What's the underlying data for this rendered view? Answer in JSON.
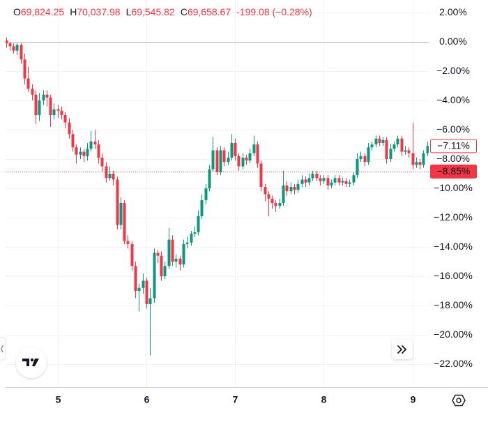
{
  "chart_data": {
    "type": "candlestick",
    "ohlc_legend": [
      {
        "key": "O",
        "value": "69,824.25"
      },
      {
        "key": "H",
        "value": "70,037.98"
      },
      {
        "key": "L",
        "value": "69,545.82"
      },
      {
        "key": "C",
        "value": "69,658.67"
      }
    ],
    "change": "-199.08 (−0.28%)",
    "up_color": "#089981",
    "down_color": "#f23645",
    "grid": true,
    "ylim": [
      -23.57,
      2.86
    ],
    "yticks": [
      {
        "value": 2,
        "label": "2.00%"
      },
      {
        "value": 0,
        "label": "0.00%"
      },
      {
        "value": -2,
        "label": "−2.00%"
      },
      {
        "value": -4,
        "label": "−4.00%"
      },
      {
        "value": -6,
        "label": "−6.00%"
      },
      {
        "value": -8,
        "label": "−8.00%"
      },
      {
        "value": -10,
        "label": "−10.00%"
      },
      {
        "value": -12,
        "label": "−12.00%"
      },
      {
        "value": -14,
        "label": "−14.00%"
      },
      {
        "value": -16,
        "label": "−16.00%"
      },
      {
        "value": -18,
        "label": "−18.00%"
      },
      {
        "value": -20,
        "label": "−20.00%"
      },
      {
        "value": -22,
        "label": "−22.00%"
      }
    ],
    "baseline": 0,
    "price_labels": [
      {
        "value": -7.11,
        "label": "−7.11%",
        "style": "outline"
      },
      {
        "value": -8.85,
        "label": "−8.85%",
        "style": "filled"
      }
    ],
    "categories": [
      null,
      null,
      null,
      null,
      null,
      null,
      null,
      null,
      null,
      null,
      null,
      null,
      null,
      null,
      "5",
      null,
      null,
      null,
      null,
      null,
      null,
      null,
      null,
      null,
      null,
      null,
      null,
      null,
      null,
      null,
      null,
      null,
      null,
      null,
      null,
      null,
      null,
      null,
      "6",
      null,
      null,
      null,
      null,
      null,
      null,
      null,
      null,
      null,
      null,
      null,
      null,
      null,
      null,
      null,
      null,
      null,
      null,
      null,
      null,
      null,
      null,
      null,
      "7",
      null,
      null,
      null,
      null,
      null,
      null,
      null,
      null,
      null,
      null,
      null,
      null,
      null,
      null,
      null,
      null,
      null,
      null,
      null,
      null,
      null,
      null,
      null,
      "8",
      null,
      null,
      null,
      null,
      null,
      null,
      null,
      null,
      null,
      null,
      null,
      null,
      null,
      null,
      null,
      null,
      null,
      null,
      null,
      null,
      null,
      null,
      null,
      "9",
      null,
      null,
      null,
      null
    ],
    "candles": [
      [
        0.1,
        0.3,
        -0.4,
        -0.1
      ],
      [
        -0.1,
        0.0,
        -0.6,
        -0.3
      ],
      [
        -0.3,
        -0.1,
        -0.8,
        -0.6
      ],
      [
        -0.6,
        -0.1,
        -0.9,
        -0.2
      ],
      [
        -0.2,
        -0.1,
        -1.5,
        -1.2
      ],
      [
        -1.2,
        -0.8,
        -2.9,
        -2.5
      ],
      [
        -2.5,
        -1.7,
        -3.4,
        -3.2
      ],
      [
        -3.2,
        -2.9,
        -4.0,
        -3.6
      ],
      [
        -3.6,
        -3.3,
        -5.6,
        -5.0
      ],
      [
        -5.0,
        -3.5,
        -5.4,
        -4.0
      ],
      [
        -4.0,
        -3.3,
        -4.3,
        -3.6
      ],
      [
        -3.6,
        -3.3,
        -4.4,
        -3.8
      ],
      [
        -3.8,
        -3.6,
        -5.8,
        -5.0
      ],
      [
        -5.0,
        -4.2,
        -5.3,
        -4.6
      ],
      [
        -4.6,
        -4.3,
        -5.2,
        -4.7
      ],
      [
        -4.7,
        -4.4,
        -5.3,
        -5.0
      ],
      [
        -5.0,
        -4.8,
        -5.9,
        -5.5
      ],
      [
        -5.5,
        -5.2,
        -6.6,
        -6.3
      ],
      [
        -6.3,
        -6.0,
        -7.5,
        -7.2
      ],
      [
        -7.2,
        -7.0,
        -8.3,
        -7.7
      ],
      [
        -7.7,
        -7.2,
        -8.0,
        -7.5
      ],
      [
        -7.5,
        -7.3,
        -8.2,
        -7.8
      ],
      [
        -7.8,
        -6.9,
        -8.1,
        -7.3
      ],
      [
        -7.3,
        -6.1,
        -7.5,
        -6.8
      ],
      [
        -6.8,
        -6.0,
        -7.3,
        -7.0
      ],
      [
        -7.0,
        -6.7,
        -8.3,
        -7.9
      ],
      [
        -7.9,
        -7.6,
        -8.9,
        -8.5
      ],
      [
        -8.5,
        -8.2,
        -9.6,
        -9.3
      ],
      [
        -9.3,
        -8.5,
        -9.5,
        -9.0
      ],
      [
        -9.0,
        -8.8,
        -9.8,
        -9.4
      ],
      [
        -9.4,
        -9.2,
        -12.8,
        -12.5
      ],
      [
        -12.5,
        -10.6,
        -12.8,
        -11.0
      ],
      [
        -11.0,
        -10.8,
        -13.8,
        -13.6
      ],
      [
        -13.6,
        -13.2,
        -14.1,
        -13.8
      ],
      [
        -13.8,
        -13.6,
        -15.6,
        -15.3
      ],
      [
        -15.3,
        -15.0,
        -17.5,
        -17.0
      ],
      [
        -17.0,
        -16.5,
        -18.4,
        -16.8
      ],
      [
        -16.8,
        -15.8,
        -17.2,
        -16.3
      ],
      [
        -16.3,
        -16.1,
        -18.2,
        -17.9
      ],
      [
        -17.9,
        -16.8,
        -21.4,
        -17.5
      ],
      [
        -17.5,
        -14.1,
        -17.8,
        -14.4
      ],
      [
        -14.4,
        -14.2,
        -15.1,
        -14.6
      ],
      [
        -14.6,
        -14.3,
        -16.3,
        -16.0
      ],
      [
        -16.0,
        -15.0,
        -16.2,
        -15.3
      ],
      [
        -15.3,
        -12.7,
        -15.5,
        -13.5
      ],
      [
        -13.5,
        -13.2,
        -15.3,
        -15.0
      ],
      [
        -15.0,
        -14.5,
        -15.4,
        -14.8
      ],
      [
        -14.8,
        -14.6,
        -15.6,
        -15.2
      ],
      [
        -15.2,
        -13.5,
        -15.4,
        -13.8
      ],
      [
        -13.8,
        -13.3,
        -14.1,
        -13.7
      ],
      [
        -13.7,
        -12.9,
        -13.9,
        -13.1
      ],
      [
        -13.1,
        -12.6,
        -13.3,
        -13.0
      ],
      [
        -13.0,
        -11.5,
        -13.2,
        -11.9
      ],
      [
        -11.9,
        -10.4,
        -12.1,
        -10.8
      ],
      [
        -10.8,
        -9.7,
        -11.1,
        -10.0
      ],
      [
        -10.0,
        -8.4,
        -10.2,
        -8.7
      ],
      [
        -8.7,
        -6.5,
        -8.9,
        -7.4
      ],
      [
        -7.4,
        -7.2,
        -9.1,
        -8.9
      ],
      [
        -8.9,
        -7.1,
        -9.1,
        -7.4
      ],
      [
        -7.4,
        -7.2,
        -8.5,
        -8.2
      ],
      [
        -8.2,
        -7.5,
        -8.4,
        -7.9
      ],
      [
        -7.9,
        -6.3,
        -8.1,
        -6.9
      ],
      [
        -6.9,
        -6.6,
        -8.1,
        -7.8
      ],
      [
        -7.8,
        -7.6,
        -8.8,
        -8.5
      ],
      [
        -8.5,
        -7.6,
        -8.7,
        -7.9
      ],
      [
        -7.9,
        -7.7,
        -8.4,
        -8.1
      ],
      [
        -8.1,
        -7.3,
        -8.3,
        -7.6
      ],
      [
        -7.6,
        -6.4,
        -7.8,
        -7.0
      ],
      [
        -7.0,
        -6.8,
        -8.6,
        -8.3
      ],
      [
        -8.3,
        -8.1,
        -10.2,
        -9.9
      ],
      [
        -9.9,
        -9.7,
        -10.9,
        -10.4
      ],
      [
        -10.4,
        -10.2,
        -11.9,
        -10.7
      ],
      [
        -10.7,
        -10.5,
        -11.4,
        -11.0
      ],
      [
        -11.0,
        -10.8,
        -11.6,
        -11.2
      ],
      [
        -11.2,
        -10.7,
        -11.4,
        -11.0
      ],
      [
        -11.0,
        -8.8,
        -11.2,
        -9.8
      ],
      [
        -9.8,
        -9.5,
        -10.5,
        -10.2
      ],
      [
        -10.2,
        -9.6,
        -10.4,
        -9.9
      ],
      [
        -9.9,
        -9.7,
        -10.4,
        -10.1
      ],
      [
        -10.1,
        -9.4,
        -10.3,
        -9.7
      ],
      [
        -9.7,
        -9.1,
        -9.9,
        -9.4
      ],
      [
        -9.4,
        -9.2,
        -9.9,
        -9.6
      ],
      [
        -9.6,
        -9.0,
        -9.8,
        -9.3
      ],
      [
        -9.3,
        -8.8,
        -9.5,
        -9.0
      ],
      [
        -9.0,
        -8.8,
        -9.5,
        -9.3
      ],
      [
        -9.3,
        -9.1,
        -9.8,
        -9.5
      ],
      [
        -9.5,
        -9.1,
        -9.7,
        -9.3
      ],
      [
        -9.3,
        -9.1,
        -10.1,
        -9.8
      ],
      [
        -9.8,
        -9.4,
        -10.0,
        -9.6
      ],
      [
        -9.6,
        -9.1,
        -9.8,
        -9.3
      ],
      [
        -9.3,
        -9.1,
        -9.8,
        -9.6
      ],
      [
        -9.6,
        -9.3,
        -9.8,
        -9.5
      ],
      [
        -9.5,
        -9.3,
        -9.9,
        -9.7
      ],
      [
        -9.7,
        -9.4,
        -9.9,
        -9.6
      ],
      [
        -9.6,
        -8.9,
        -9.8,
        -9.1
      ],
      [
        -9.1,
        -7.6,
        -9.3,
        -8.0
      ],
      [
        -8.0,
        -7.5,
        -8.2,
        -7.8
      ],
      [
        -7.8,
        -7.6,
        -8.5,
        -8.2
      ],
      [
        -8.2,
        -6.9,
        -8.4,
        -7.2
      ],
      [
        -7.2,
        -6.8,
        -7.4,
        -7.0
      ],
      [
        -7.0,
        -6.4,
        -7.2,
        -6.6
      ],
      [
        -6.6,
        -6.4,
        -7.1,
        -6.9
      ],
      [
        -6.9,
        -6.5,
        -7.1,
        -6.7
      ],
      [
        -6.7,
        -6.5,
        -8.3,
        -8.0
      ],
      [
        -8.0,
        -7.0,
        -8.2,
        -7.3
      ],
      [
        -7.3,
        -6.8,
        -7.5,
        -7.0
      ],
      [
        -7.0,
        -6.4,
        -7.2,
        -6.6
      ],
      [
        -6.6,
        -6.4,
        -7.8,
        -7.5
      ],
      [
        -7.5,
        -7.1,
        -7.7,
        -7.4
      ],
      [
        -7.4,
        -7.2,
        -7.9,
        -7.6
      ],
      [
        -7.6,
        -5.5,
        -8.7,
        -8.4
      ],
      [
        -8.4,
        -7.9,
        -8.6,
        -8.2
      ],
      [
        -8.2,
        -8.0,
        -8.7,
        -8.4
      ],
      [
        -8.4,
        -7.4,
        -8.6,
        -7.6
      ],
      [
        -7.6,
        -6.8,
        -7.8,
        -7.1
      ]
    ]
  }
}
